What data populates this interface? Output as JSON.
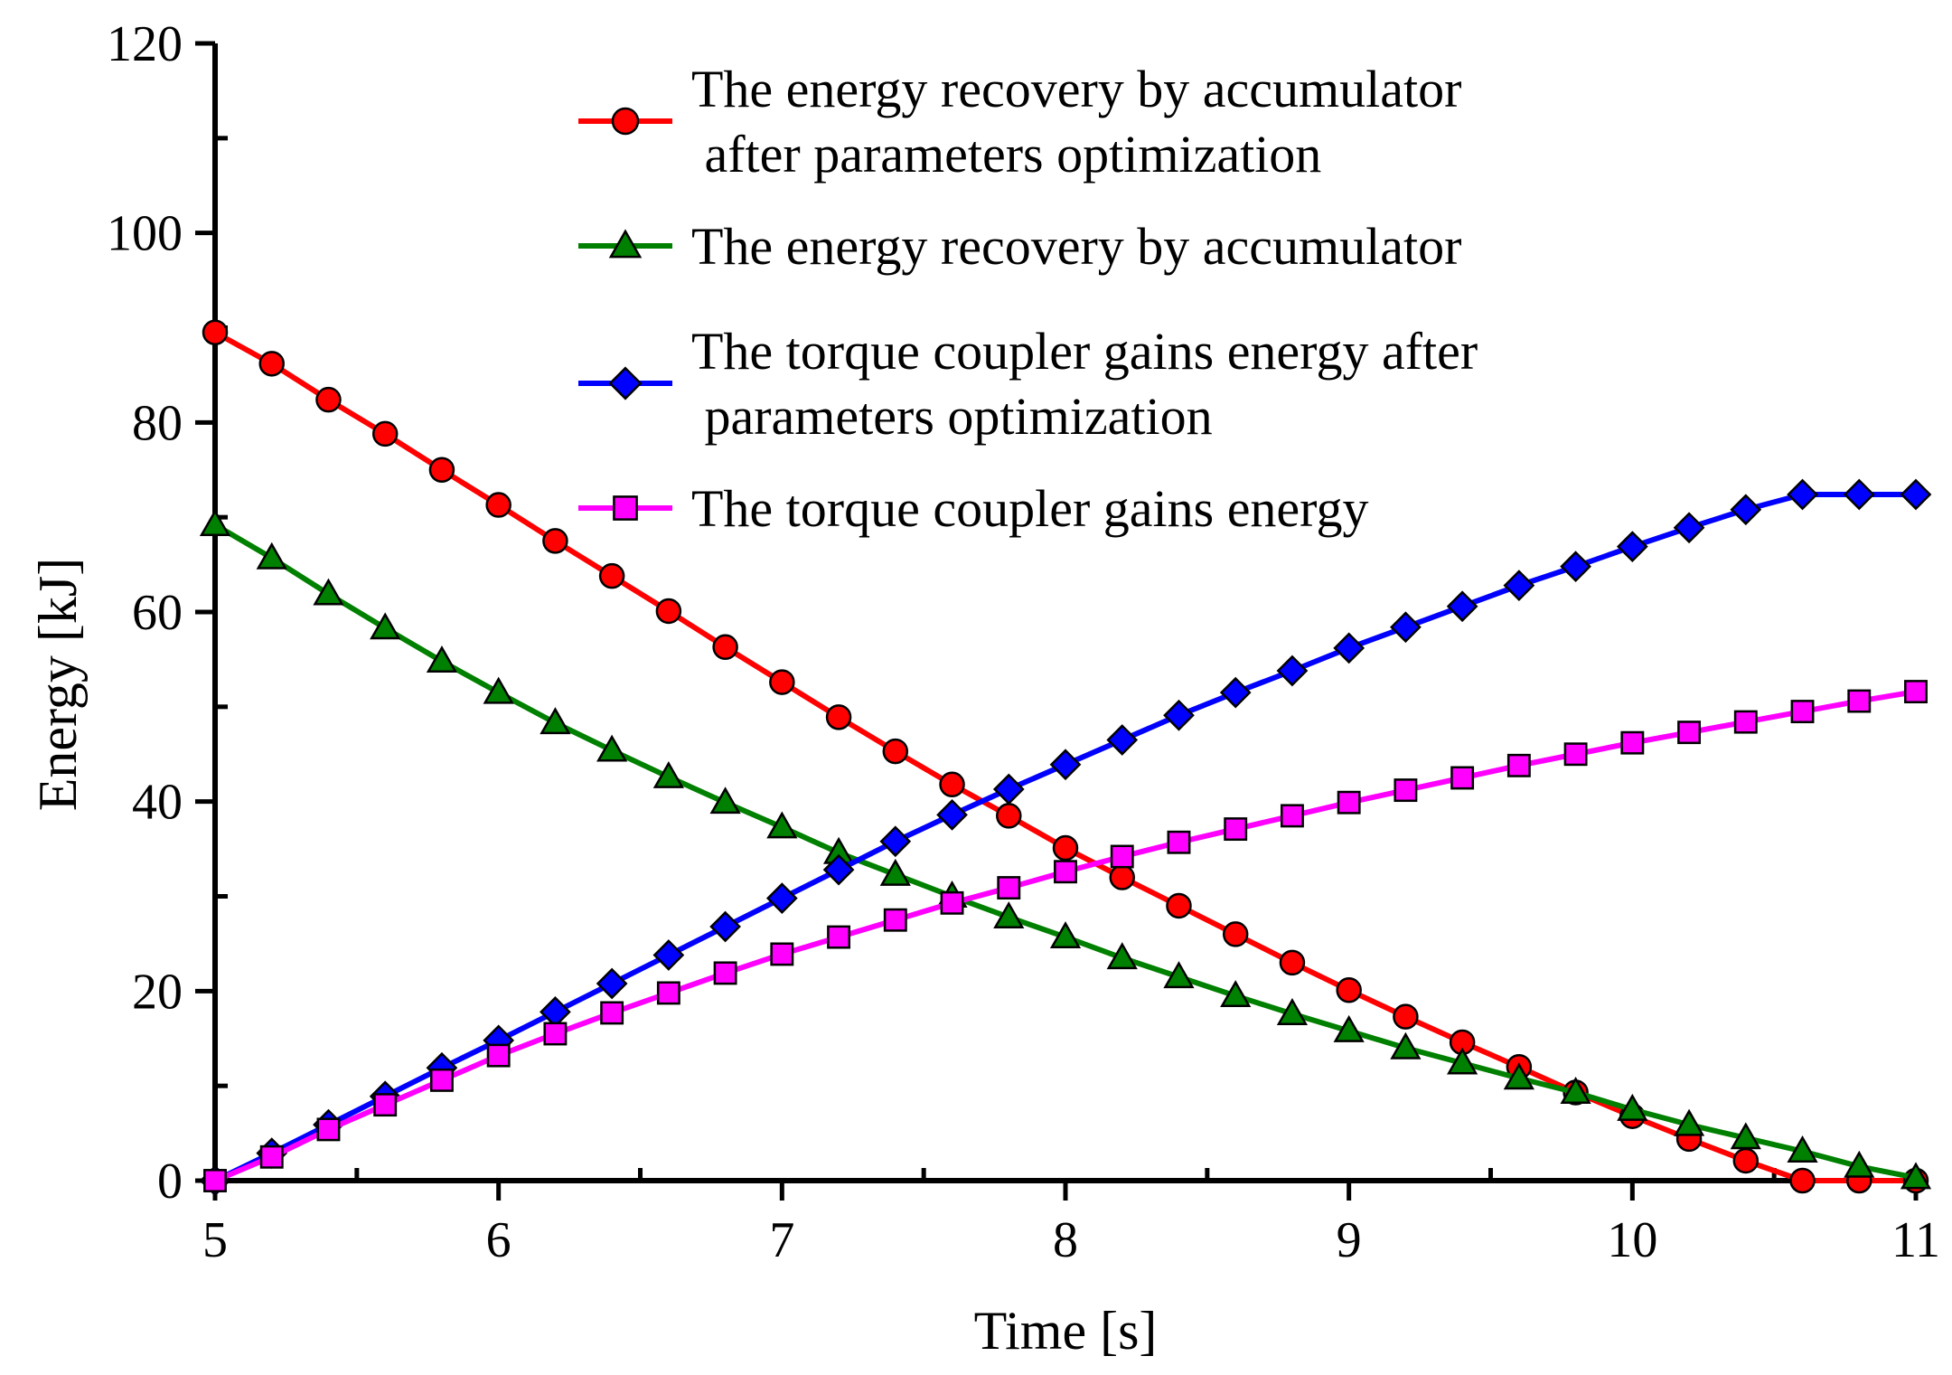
{
  "chart_data": {
    "type": "line",
    "title": "",
    "xlabel": "Time [s]",
    "ylabel": "Energy [kJ]",
    "xlim": [
      5,
      11
    ],
    "ylim": [
      0,
      120
    ],
    "xticks": [
      "5",
      "6",
      "7",
      "8",
      "9",
      "10",
      "11"
    ],
    "yticks": [
      "0",
      "20",
      "40",
      "60",
      "80",
      "100",
      "120"
    ],
    "grid": false,
    "legend_position": "top-center",
    "x": [
      5.0,
      5.2,
      5.4,
      5.6,
      5.8,
      6.0,
      6.2,
      6.4,
      6.6,
      6.8,
      7.0,
      7.2,
      7.4,
      7.6,
      7.8,
      8.0,
      8.2,
      8.4,
      8.6,
      8.8,
      9.0,
      9.2,
      9.4,
      9.6,
      9.8,
      10.0,
      10.2,
      10.4,
      10.6,
      10.8,
      11.0
    ],
    "series": [
      {
        "name": "The energy recovery by accumulator after parameters optimization",
        "legend_lines": [
          "The energy recovery by accumulator",
          " after parameters optimization"
        ],
        "color": "#ff0000",
        "marker": "circle",
        "values": [
          89.5,
          86.2,
          82.4,
          78.8,
          75.0,
          71.3,
          67.5,
          63.8,
          60.1,
          56.3,
          52.6,
          48.9,
          45.3,
          41.8,
          38.5,
          35.1,
          32.0,
          29.0,
          26.0,
          23.0,
          20.1,
          17.3,
          14.6,
          12.0,
          9.3,
          6.8,
          4.4,
          2.1,
          0.0,
          0.0,
          0.0
        ]
      },
      {
        "name": "The energy recovery by accumulator",
        "legend_lines": [
          "The energy recovery by accumulator"
        ],
        "color": "#008000",
        "marker": "triangle",
        "values": [
          69.2,
          65.7,
          61.9,
          58.3,
          54.8,
          51.5,
          48.3,
          45.4,
          42.6,
          39.9,
          37.3,
          34.6,
          32.3,
          30.0,
          27.8,
          25.7,
          23.5,
          21.5,
          19.5,
          17.6,
          15.8,
          14.0,
          12.4,
          10.8,
          9.3,
          7.5,
          5.9,
          4.5,
          3.1,
          1.5,
          0.3
        ]
      },
      {
        "name": "The torque coupler gains energy after parameters optimization",
        "legend_lines": [
          "The torque coupler gains energy after",
          " parameters optimization"
        ],
        "color": "#0000ff",
        "marker": "diamond",
        "values": [
          0.0,
          2.9,
          5.9,
          8.9,
          11.9,
          14.8,
          17.8,
          20.8,
          23.8,
          26.8,
          29.8,
          32.8,
          35.8,
          38.6,
          41.3,
          43.9,
          46.5,
          49.1,
          51.5,
          53.8,
          56.2,
          58.4,
          60.6,
          62.8,
          64.8,
          66.9,
          68.9,
          70.8,
          72.4,
          72.4,
          72.4
        ]
      },
      {
        "name": "The torque coupler gains energy",
        "legend_lines": [
          "The torque coupler gains energy"
        ],
        "color": "#ff00ff",
        "marker": "square",
        "values": [
          0.0,
          2.5,
          5.4,
          8.0,
          10.6,
          13.2,
          15.5,
          17.7,
          19.8,
          21.9,
          23.9,
          25.7,
          27.5,
          29.3,
          30.9,
          32.6,
          34.2,
          35.7,
          37.1,
          38.5,
          39.9,
          41.2,
          42.5,
          43.8,
          45.0,
          46.2,
          47.3,
          48.4,
          49.5,
          50.6,
          51.6
        ]
      }
    ]
  }
}
